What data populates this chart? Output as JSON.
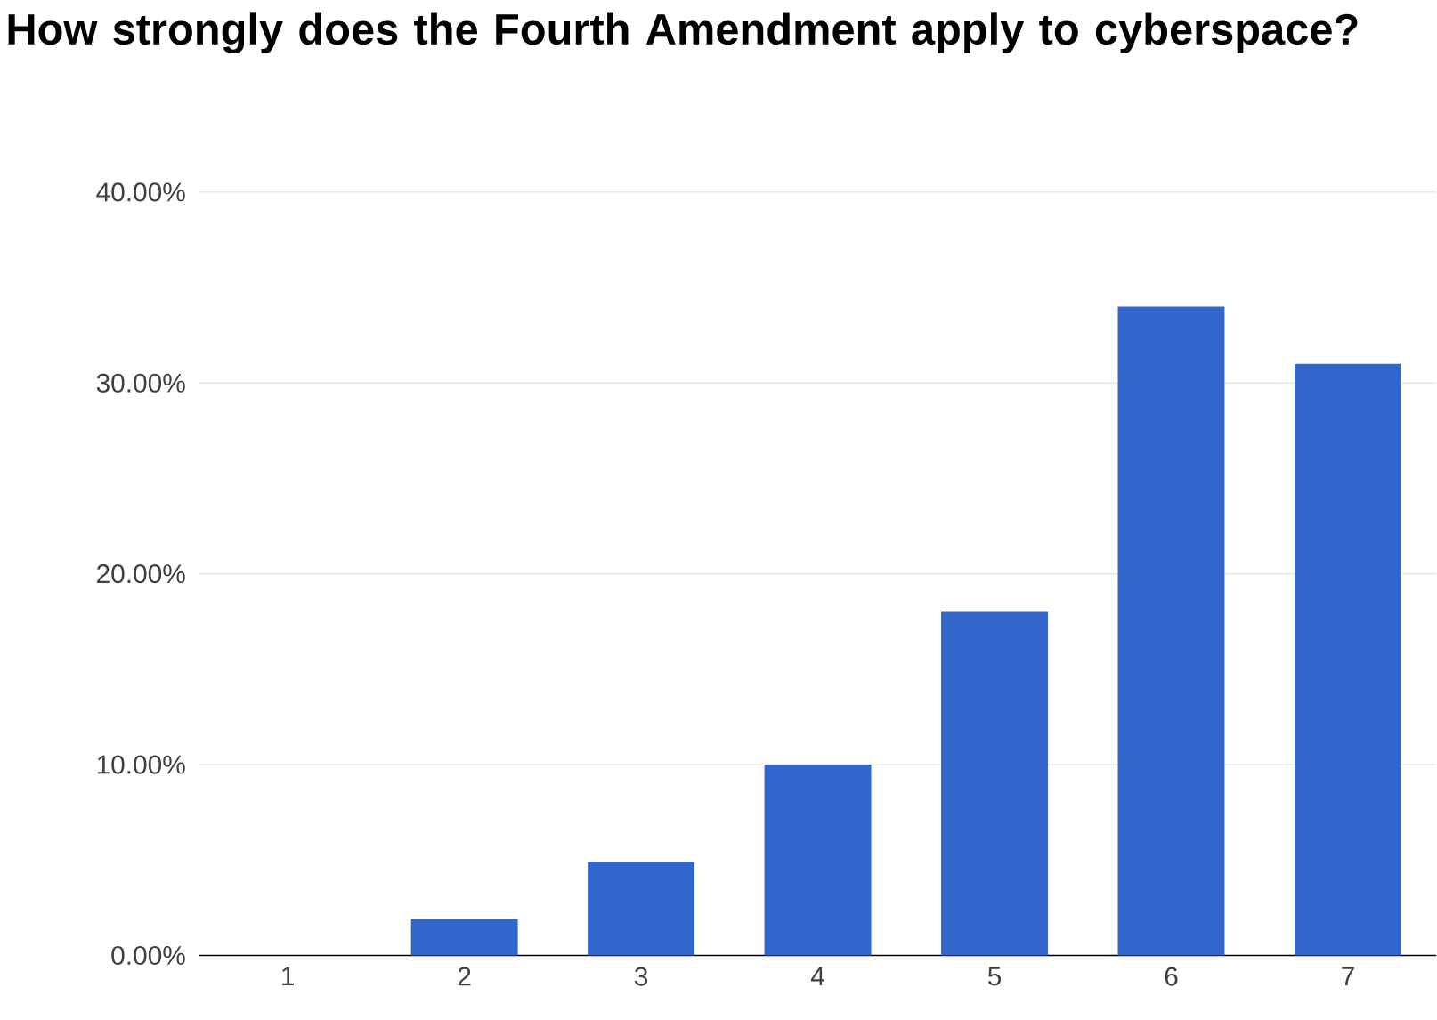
{
  "chart_data": {
    "type": "bar",
    "title": "How strongly does the Fourth Amendment apply to cyberspace?",
    "categories": [
      "1",
      "2",
      "3",
      "4",
      "5",
      "6",
      "7"
    ],
    "values": [
      0,
      1.9,
      4.9,
      10,
      18,
      34,
      31
    ],
    "color": "#3366cc",
    "ylim": [
      0,
      40
    ],
    "yticks": [
      {
        "value": 0,
        "label": "0.00%"
      },
      {
        "value": 10,
        "label": "10.00%"
      },
      {
        "value": 20,
        "label": "20.00%"
      },
      {
        "value": 30,
        "label": "30.00%"
      },
      {
        "value": 40,
        "label": "40.00%"
      }
    ],
    "grid": "y"
  }
}
